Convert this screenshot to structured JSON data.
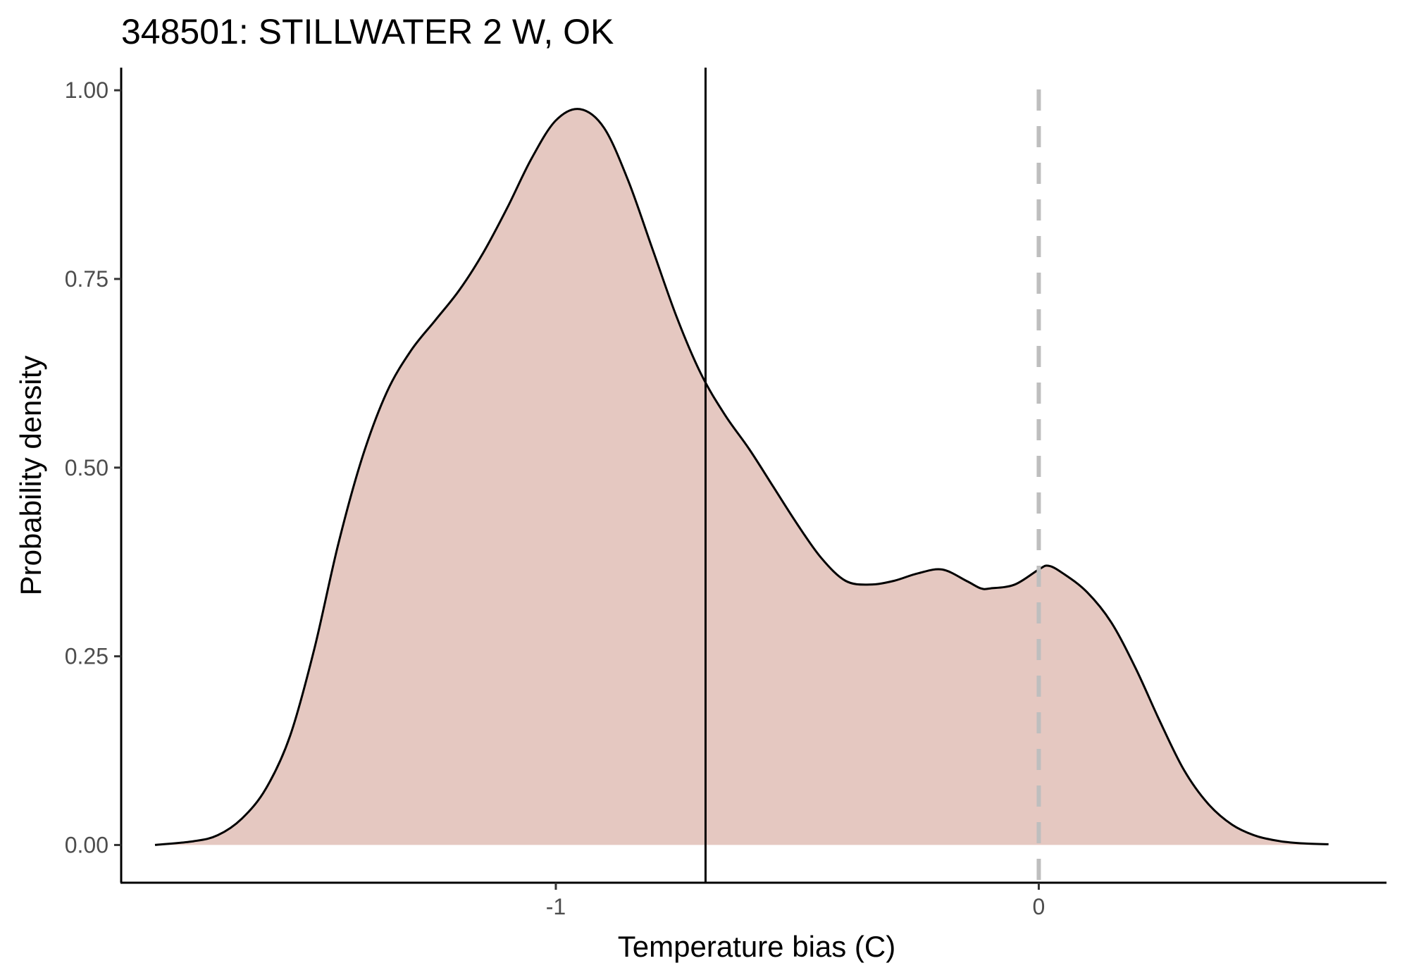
{
  "chart_data": {
    "type": "area",
    "title": "348501: STILLWATER 2 W, OK",
    "xlabel": "Temperature bias (C)",
    "ylabel": "Probability density",
    "xlim": [
      -1.9,
      0.72
    ],
    "ylim": [
      -0.05,
      1.03
    ],
    "x_ticks": [
      {
        "value": -1,
        "label": "-1"
      },
      {
        "value": 0,
        "label": "0"
      }
    ],
    "y_ticks": [
      {
        "value": 0,
        "label": "0.00"
      },
      {
        "value": 0.25,
        "label": "0.25"
      },
      {
        "value": 0.5,
        "label": "0.50"
      },
      {
        "value": 0.75,
        "label": "0.75"
      },
      {
        "value": 1.0,
        "label": "1.00"
      }
    ],
    "grid": false,
    "legend": "none",
    "fill_color": "#e5c8c1",
    "line_color": "#000000",
    "series": [
      {
        "x": [
          -1.83,
          -1.75,
          -1.7,
          -1.65,
          -1.6,
          -1.55,
          -1.5,
          -1.45,
          -1.4,
          -1.35,
          -1.3,
          -1.25,
          -1.2,
          -1.15,
          -1.1,
          -1.05,
          -1.0,
          -0.95,
          -0.9,
          -0.85,
          -0.8,
          -0.75,
          -0.7,
          -0.65,
          -0.6,
          -0.55,
          -0.5,
          -0.45,
          -0.4,
          -0.35,
          -0.3,
          -0.25,
          -0.2,
          -0.15,
          -0.12,
          -0.1,
          -0.05,
          0.0,
          0.02,
          0.05,
          0.1,
          0.15,
          0.2,
          0.25,
          0.3,
          0.35,
          0.4,
          0.45,
          0.5,
          0.55,
          0.6
        ],
        "y": [
          0.0,
          0.005,
          0.013,
          0.035,
          0.075,
          0.145,
          0.26,
          0.4,
          0.515,
          0.6,
          0.655,
          0.695,
          0.735,
          0.785,
          0.845,
          0.91,
          0.96,
          0.975,
          0.95,
          0.88,
          0.79,
          0.7,
          0.625,
          0.57,
          0.525,
          0.475,
          0.425,
          0.38,
          0.35,
          0.345,
          0.35,
          0.36,
          0.365,
          0.35,
          0.34,
          0.34,
          0.345,
          0.365,
          0.37,
          0.36,
          0.335,
          0.295,
          0.235,
          0.165,
          0.1,
          0.055,
          0.027,
          0.012,
          0.005,
          0.002,
          0.001
        ]
      }
    ],
    "reference_lines": [
      {
        "axis": "x",
        "value": -0.69,
        "style": "solid",
        "color": "#000000"
      },
      {
        "axis": "x",
        "value": 0.0,
        "style": "dashed",
        "color": "#bebebe"
      }
    ]
  }
}
